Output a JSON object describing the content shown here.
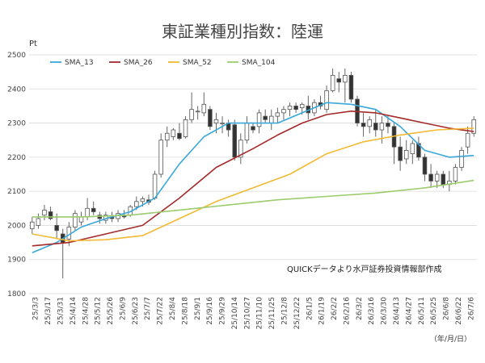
{
  "chart_data": {
    "type": "candlestick",
    "title": "東証業種別指数：陸運",
    "y_unit_label": "Pt",
    "x_unit_label": "（年/月/日）",
    "annotation": "QUICKデータより水戸証券投資情報部作成",
    "ylim": [
      1800,
      2500
    ],
    "yticks": [
      1800,
      1900,
      2000,
      2100,
      2200,
      2300,
      2400,
      2500
    ],
    "grid": "horizontal",
    "legend_position": "top-left",
    "colors": {
      "SMA_13": "#3aa7d9",
      "SMA_26": "#a52a2a",
      "SMA_52": "#f2b933",
      "SMA_104": "#9ccc6e",
      "candle_up": "#ffffff",
      "candle_down": "#333333",
      "candle_edge": "#555555",
      "grid": "#d9d9d9"
    },
    "xticks": [
      "25/3/3",
      "25/3/17",
      "25/3/31",
      "25/4/14",
      "25/4/28",
      "25/5/12",
      "25/5/26",
      "25/6/9",
      "25/6/23",
      "25/7/7",
      "25/7/22",
      "25/8/4",
      "25/8/18",
      "25/9/1",
      "25/9/16",
      "25/9/29",
      "25/10/14",
      "25/10/27",
      "25/11/10",
      "25/11/25",
      "25/12/8",
      "25/12/22",
      "26/1/5",
      "26/1/19",
      "26/2/2",
      "26/2/16",
      "26/3/2",
      "26/3/16",
      "26/3/30",
      "26/4/13",
      "26/4/27",
      "26/5/11",
      "26/5/25",
      "26/6/8",
      "26/6/22",
      "26/7/6"
    ],
    "candles": [
      {
        "o": 1990,
        "h": 2025,
        "l": 1975,
        "c": 2010
      },
      {
        "o": 2000,
        "h": 2035,
        "l": 1990,
        "c": 2020
      },
      {
        "o": 2030,
        "h": 2060,
        "l": 2015,
        "c": 2045
      },
      {
        "o": 2040,
        "h": 2055,
        "l": 2015,
        "c": 2020
      },
      {
        "o": 2000,
        "h": 2035,
        "l": 1960,
        "c": 1985
      },
      {
        "o": 1975,
        "h": 1990,
        "l": 1845,
        "c": 1950
      },
      {
        "o": 1960,
        "h": 2010,
        "l": 1940,
        "c": 1995
      },
      {
        "o": 1995,
        "h": 2045,
        "l": 1985,
        "c": 2035
      },
      {
        "o": 2010,
        "h": 2040,
        "l": 2000,
        "c": 2025
      },
      {
        "o": 2025,
        "h": 2080,
        "l": 2015,
        "c": 2050
      },
      {
        "o": 2050,
        "h": 2070,
        "l": 2030,
        "c": 2040
      },
      {
        "o": 2030,
        "h": 2040,
        "l": 2005,
        "c": 2020
      },
      {
        "o": 2015,
        "h": 2040,
        "l": 2005,
        "c": 2030
      },
      {
        "o": 2025,
        "h": 2040,
        "l": 2010,
        "c": 2020
      },
      {
        "o": 2020,
        "h": 2045,
        "l": 2010,
        "c": 2035
      },
      {
        "o": 2030,
        "h": 2045,
        "l": 2020,
        "c": 2025
      },
      {
        "o": 2030,
        "h": 2060,
        "l": 2025,
        "c": 2055
      },
      {
        "o": 2055,
        "h": 2085,
        "l": 2045,
        "c": 2070
      },
      {
        "o": 2070,
        "h": 2085,
        "l": 2055,
        "c": 2078
      },
      {
        "o": 2075,
        "h": 2090,
        "l": 2060,
        "c": 2068
      },
      {
        "o": 2080,
        "h": 2160,
        "l": 2075,
        "c": 2150
      },
      {
        "o": 2150,
        "h": 2270,
        "l": 2140,
        "c": 2250
      },
      {
        "o": 2250,
        "h": 2290,
        "l": 2230,
        "c": 2270
      },
      {
        "o": 2260,
        "h": 2285,
        "l": 2250,
        "c": 2280
      },
      {
        "o": 2270,
        "h": 2300,
        "l": 2250,
        "c": 2255
      },
      {
        "o": 2260,
        "h": 2320,
        "l": 2255,
        "c": 2310
      },
      {
        "o": 2310,
        "h": 2390,
        "l": 2300,
        "c": 2340
      },
      {
        "o": 2335,
        "h": 2350,
        "l": 2310,
        "c": 2335
      },
      {
        "o": 2330,
        "h": 2390,
        "l": 2320,
        "c": 2355
      },
      {
        "o": 2340,
        "h": 2350,
        "l": 2280,
        "c": 2290
      },
      {
        "o": 2300,
        "h": 2330,
        "l": 2270,
        "c": 2310
      },
      {
        "o": 2300,
        "h": 2320,
        "l": 2270,
        "c": 2300
      },
      {
        "o": 2300,
        "h": 2310,
        "l": 2260,
        "c": 2280
      },
      {
        "o": 2295,
        "h": 2310,
        "l": 2190,
        "c": 2200
      },
      {
        "o": 2200,
        "h": 2270,
        "l": 2180,
        "c": 2250
      },
      {
        "o": 2250,
        "h": 2320,
        "l": 2240,
        "c": 2300
      },
      {
        "o": 2290,
        "h": 2300,
        "l": 2270,
        "c": 2280
      },
      {
        "o": 2290,
        "h": 2340,
        "l": 2270,
        "c": 2330
      },
      {
        "o": 2320,
        "h": 2340,
        "l": 2300,
        "c": 2310
      },
      {
        "o": 2300,
        "h": 2340,
        "l": 2280,
        "c": 2320
      },
      {
        "o": 2320,
        "h": 2345,
        "l": 2300,
        "c": 2330
      },
      {
        "o": 2330,
        "h": 2350,
        "l": 2310,
        "c": 2340
      },
      {
        "o": 2340,
        "h": 2360,
        "l": 2320,
        "c": 2350
      },
      {
        "o": 2350,
        "h": 2360,
        "l": 2330,
        "c": 2340
      },
      {
        "o": 2345,
        "h": 2360,
        "l": 2325,
        "c": 2355
      },
      {
        "o": 2350,
        "h": 2380,
        "l": 2310,
        "c": 2330
      },
      {
        "o": 2330,
        "h": 2370,
        "l": 2320,
        "c": 2360
      },
      {
        "o": 2360,
        "h": 2380,
        "l": 2340,
        "c": 2350
      },
      {
        "o": 2340,
        "h": 2410,
        "l": 2330,
        "c": 2395
      },
      {
        "o": 2395,
        "h": 2460,
        "l": 2390,
        "c": 2440
      },
      {
        "o": 2430,
        "h": 2450,
        "l": 2390,
        "c": 2420
      },
      {
        "o": 2420,
        "h": 2460,
        "l": 2360,
        "c": 2440
      },
      {
        "o": 2440,
        "h": 2450,
        "l": 2360,
        "c": 2370
      },
      {
        "o": 2370,
        "h": 2380,
        "l": 2290,
        "c": 2300
      },
      {
        "o": 2300,
        "h": 2330,
        "l": 2260,
        "c": 2290
      },
      {
        "o": 2290,
        "h": 2320,
        "l": 2270,
        "c": 2310
      },
      {
        "o": 2300,
        "h": 2340,
        "l": 2260,
        "c": 2280
      },
      {
        "o": 2280,
        "h": 2320,
        "l": 2240,
        "c": 2300
      },
      {
        "o": 2300,
        "h": 2320,
        "l": 2270,
        "c": 2290
      },
      {
        "o": 2290,
        "h": 2300,
        "l": 2180,
        "c": 2230
      },
      {
        "o": 2230,
        "h": 2260,
        "l": 2160,
        "c": 2190
      },
      {
        "o": 2195,
        "h": 2250,
        "l": 2180,
        "c": 2220
      },
      {
        "o": 2210,
        "h": 2250,
        "l": 2180,
        "c": 2240
      },
      {
        "o": 2240,
        "h": 2260,
        "l": 2190,
        "c": 2200
      },
      {
        "o": 2200,
        "h": 2210,
        "l": 2130,
        "c": 2150
      },
      {
        "o": 2150,
        "h": 2180,
        "l": 2110,
        "c": 2130
      },
      {
        "o": 2130,
        "h": 2160,
        "l": 2110,
        "c": 2150
      },
      {
        "o": 2150,
        "h": 2160,
        "l": 2110,
        "c": 2120
      },
      {
        "o": 2120,
        "h": 2160,
        "l": 2100,
        "c": 2130
      },
      {
        "o": 2130,
        "h": 2180,
        "l": 2120,
        "c": 2170
      },
      {
        "o": 2170,
        "h": 2230,
        "l": 2160,
        "c": 2220
      },
      {
        "o": 2230,
        "h": 2290,
        "l": 2210,
        "c": 2270
      },
      {
        "o": 2270,
        "h": 2320,
        "l": 2260,
        "c": 2310
      }
    ],
    "series": [
      {
        "name": "SMA_13",
        "values": [
          [
            0,
            1920
          ],
          [
            4,
            1950
          ],
          [
            8,
            1995
          ],
          [
            12,
            2020
          ],
          [
            16,
            2040
          ],
          [
            20,
            2080
          ],
          [
            24,
            2180
          ],
          [
            28,
            2260
          ],
          [
            32,
            2300
          ],
          [
            36,
            2300
          ],
          [
            40,
            2300
          ],
          [
            44,
            2330
          ],
          [
            48,
            2360
          ],
          [
            52,
            2355
          ],
          [
            56,
            2340
          ],
          [
            60,
            2290
          ],
          [
            64,
            2220
          ],
          [
            68,
            2200
          ],
          [
            72,
            2205
          ]
        ]
      },
      {
        "name": "SMA_26",
        "values": [
          [
            0,
            1940
          ],
          [
            6,
            1950
          ],
          [
            12,
            1975
          ],
          [
            18,
            2000
          ],
          [
            24,
            2080
          ],
          [
            30,
            2170
          ],
          [
            36,
            2225
          ],
          [
            40,
            2265
          ],
          [
            44,
            2300
          ],
          [
            48,
            2325
          ],
          [
            52,
            2335
          ],
          [
            56,
            2330
          ],
          [
            60,
            2315
          ],
          [
            64,
            2300
          ],
          [
            68,
            2285
          ],
          [
            72,
            2275
          ]
        ]
      },
      {
        "name": "SMA_52",
        "values": [
          [
            0,
            1975
          ],
          [
            6,
            1955
          ],
          [
            12,
            1958
          ],
          [
            18,
            1970
          ],
          [
            24,
            2020
          ],
          [
            30,
            2070
          ],
          [
            36,
            2110
          ],
          [
            42,
            2150
          ],
          [
            48,
            2210
          ],
          [
            54,
            2245
          ],
          [
            60,
            2265
          ],
          [
            66,
            2280
          ],
          [
            72,
            2285
          ]
        ]
      },
      {
        "name": "SMA_104",
        "values": [
          [
            0,
            2025
          ],
          [
            8,
            2025
          ],
          [
            16,
            2030
          ],
          [
            24,
            2045
          ],
          [
            32,
            2060
          ],
          [
            40,
            2075
          ],
          [
            48,
            2085
          ],
          [
            56,
            2095
          ],
          [
            64,
            2110
          ],
          [
            72,
            2132
          ]
        ]
      }
    ]
  }
}
